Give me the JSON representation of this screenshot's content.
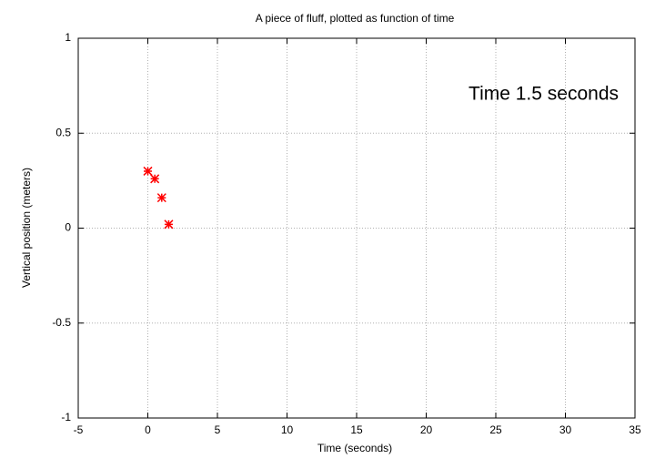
{
  "chart_data": {
    "type": "scatter",
    "title": "A piece of fluff, plotted as function of time",
    "xlabel": "Time (seconds)",
    "ylabel": "Vertical position (meters)",
    "annotation": "Time  1.5 seconds",
    "x": [
      0,
      0.5,
      1.0,
      1.5
    ],
    "values": [
      0.3,
      0.26,
      0.16,
      0.02
    ],
    "color": "#ff0000",
    "xlim": [
      -5,
      35
    ],
    "xticks": [
      -5,
      0,
      5,
      10,
      15,
      20,
      25,
      30,
      35
    ],
    "ylim": [
      -1,
      1
    ],
    "yticks": [
      -1,
      -0.5,
      0,
      0.5,
      1
    ],
    "grid": true
  }
}
